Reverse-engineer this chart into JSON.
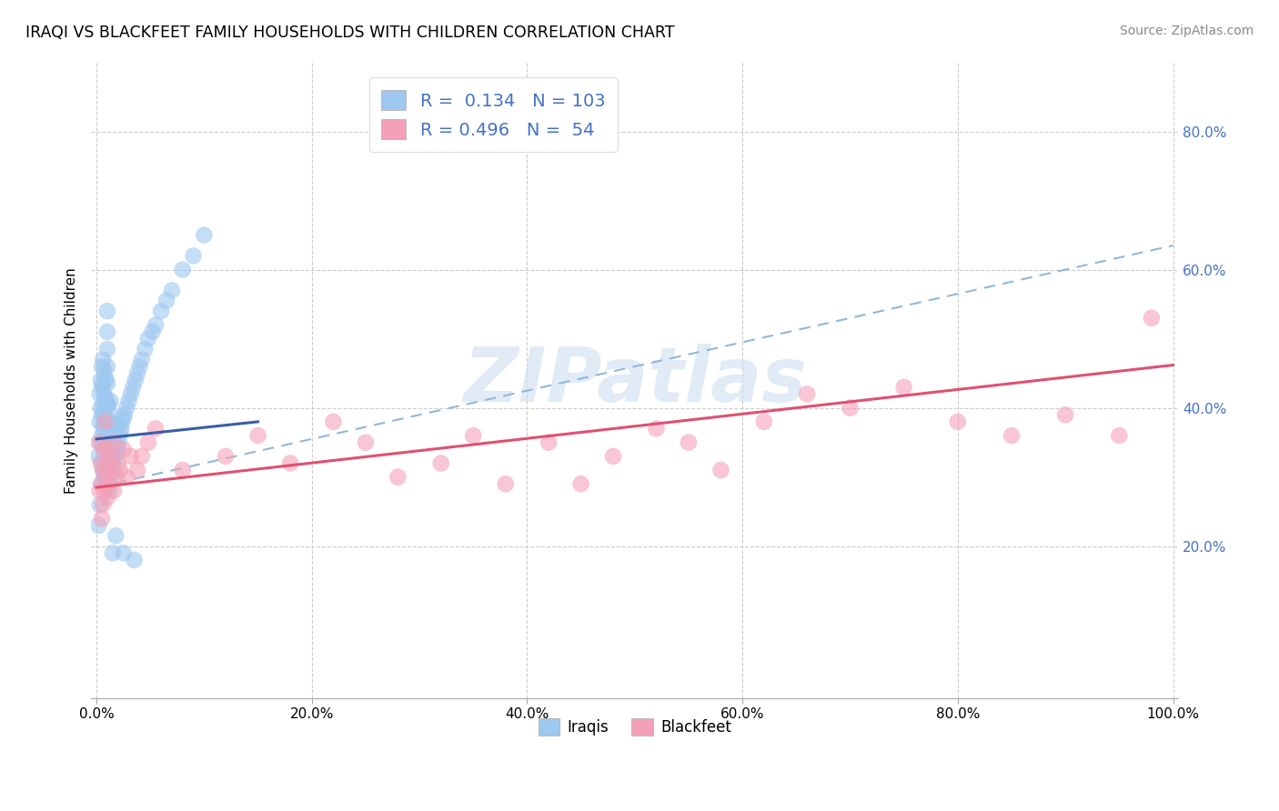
{
  "title": "IRAQI VS BLACKFEET FAMILY HOUSEHOLDS WITH CHILDREN CORRELATION CHART",
  "source": "Source: ZipAtlas.com",
  "ylabel": "Family Households with Children",
  "xlim": [
    -0.005,
    1.005
  ],
  "ylim": [
    -0.02,
    0.9
  ],
  "xticks": [
    0.0,
    0.2,
    0.4,
    0.6,
    0.8,
    1.0
  ],
  "yticks": [
    0.2,
    0.4,
    0.6,
    0.8
  ],
  "xtick_labels": [
    "0.0%",
    "20.0%",
    "40.0%",
    "60.0%",
    "80.0%",
    "100.0%"
  ],
  "ytick_labels": [
    "20.0%",
    "40.0%",
    "60.0%",
    "80.0%"
  ],
  "iraqi_R": 0.134,
  "iraqi_N": 103,
  "blackfeet_R": 0.496,
  "blackfeet_N": 54,
  "iraqi_color": "#9EC8F0",
  "blackfeet_color": "#F4A0B8",
  "iraqi_line_color": "#3A5DA8",
  "blackfeet_line_color": "#E05070",
  "dashed_line_color": "#90B8D8",
  "background_color": "#FFFFFF",
  "grid_color": "#CCCCCC",
  "watermark": "ZIPatlas",
  "watermark_color": "#C8DCF0",
  "legend_text_color": "#4472C4",
  "iraqi_x": [
    0.002,
    0.003,
    0.003,
    0.004,
    0.004,
    0.004,
    0.005,
    0.005,
    0.005,
    0.005,
    0.005,
    0.006,
    0.006,
    0.006,
    0.006,
    0.006,
    0.006,
    0.007,
    0.007,
    0.007,
    0.007,
    0.007,
    0.007,
    0.008,
    0.008,
    0.008,
    0.008,
    0.008,
    0.009,
    0.009,
    0.009,
    0.009,
    0.009,
    0.01,
    0.01,
    0.01,
    0.01,
    0.01,
    0.01,
    0.01,
    0.01,
    0.01,
    0.01,
    0.011,
    0.011,
    0.011,
    0.011,
    0.012,
    0.012,
    0.012,
    0.012,
    0.013,
    0.013,
    0.013,
    0.013,
    0.014,
    0.014,
    0.014,
    0.015,
    0.015,
    0.015,
    0.016,
    0.016,
    0.017,
    0.017,
    0.018,
    0.018,
    0.019,
    0.019,
    0.02,
    0.02,
    0.021,
    0.022,
    0.023,
    0.024,
    0.025,
    0.026,
    0.028,
    0.03,
    0.032,
    0.034,
    0.036,
    0.038,
    0.04,
    0.042,
    0.045,
    0.048,
    0.052,
    0.055,
    0.06,
    0.065,
    0.07,
    0.08,
    0.09,
    0.1,
    0.012,
    0.015,
    0.018,
    0.025,
    0.035,
    0.002,
    0.003,
    0.004
  ],
  "iraqi_y": [
    0.33,
    0.38,
    0.42,
    0.35,
    0.4,
    0.44,
    0.32,
    0.36,
    0.39,
    0.43,
    0.46,
    0.31,
    0.345,
    0.375,
    0.405,
    0.435,
    0.47,
    0.3,
    0.335,
    0.365,
    0.395,
    0.42,
    0.455,
    0.325,
    0.355,
    0.385,
    0.415,
    0.445,
    0.315,
    0.35,
    0.38,
    0.41,
    0.44,
    0.295,
    0.325,
    0.355,
    0.38,
    0.405,
    0.435,
    0.46,
    0.485,
    0.51,
    0.54,
    0.31,
    0.345,
    0.375,
    0.405,
    0.3,
    0.33,
    0.36,
    0.395,
    0.32,
    0.35,
    0.38,
    0.41,
    0.305,
    0.34,
    0.37,
    0.315,
    0.345,
    0.375,
    0.325,
    0.355,
    0.33,
    0.36,
    0.34,
    0.37,
    0.335,
    0.365,
    0.345,
    0.375,
    0.355,
    0.365,
    0.37,
    0.38,
    0.385,
    0.39,
    0.4,
    0.41,
    0.42,
    0.43,
    0.44,
    0.45,
    0.46,
    0.47,
    0.485,
    0.5,
    0.51,
    0.52,
    0.54,
    0.555,
    0.57,
    0.6,
    0.62,
    0.65,
    0.28,
    0.19,
    0.215,
    0.19,
    0.18,
    0.23,
    0.26,
    0.29
  ],
  "blackfeet_x": [
    0.002,
    0.003,
    0.004,
    0.005,
    0.005,
    0.006,
    0.006,
    0.007,
    0.008,
    0.008,
    0.009,
    0.01,
    0.01,
    0.011,
    0.012,
    0.013,
    0.014,
    0.015,
    0.016,
    0.018,
    0.02,
    0.022,
    0.025,
    0.028,
    0.032,
    0.038,
    0.042,
    0.048,
    0.055,
    0.08,
    0.12,
    0.15,
    0.18,
    0.22,
    0.25,
    0.28,
    0.32,
    0.35,
    0.38,
    0.42,
    0.45,
    0.48,
    0.52,
    0.55,
    0.58,
    0.62,
    0.66,
    0.7,
    0.75,
    0.8,
    0.85,
    0.9,
    0.95,
    0.98
  ],
  "blackfeet_y": [
    0.35,
    0.28,
    0.32,
    0.24,
    0.29,
    0.26,
    0.31,
    0.34,
    0.38,
    0.28,
    0.3,
    0.34,
    0.27,
    0.32,
    0.29,
    0.31,
    0.33,
    0.35,
    0.28,
    0.3,
    0.32,
    0.31,
    0.34,
    0.3,
    0.33,
    0.31,
    0.33,
    0.35,
    0.37,
    0.31,
    0.33,
    0.36,
    0.32,
    0.38,
    0.35,
    0.3,
    0.32,
    0.36,
    0.29,
    0.35,
    0.29,
    0.33,
    0.37,
    0.35,
    0.31,
    0.38,
    0.42,
    0.4,
    0.43,
    0.38,
    0.36,
    0.39,
    0.36,
    0.53
  ],
  "iraqi_line_x": [
    0.0,
    0.15
  ],
  "iraqi_line_y": [
    0.355,
    0.38
  ],
  "blackfeet_line_x": [
    0.0,
    1.0
  ],
  "blackfeet_line_y": [
    0.285,
    0.462
  ],
  "dashed_line_x": [
    0.0,
    1.0
  ],
  "dashed_line_y": [
    0.285,
    0.635
  ]
}
